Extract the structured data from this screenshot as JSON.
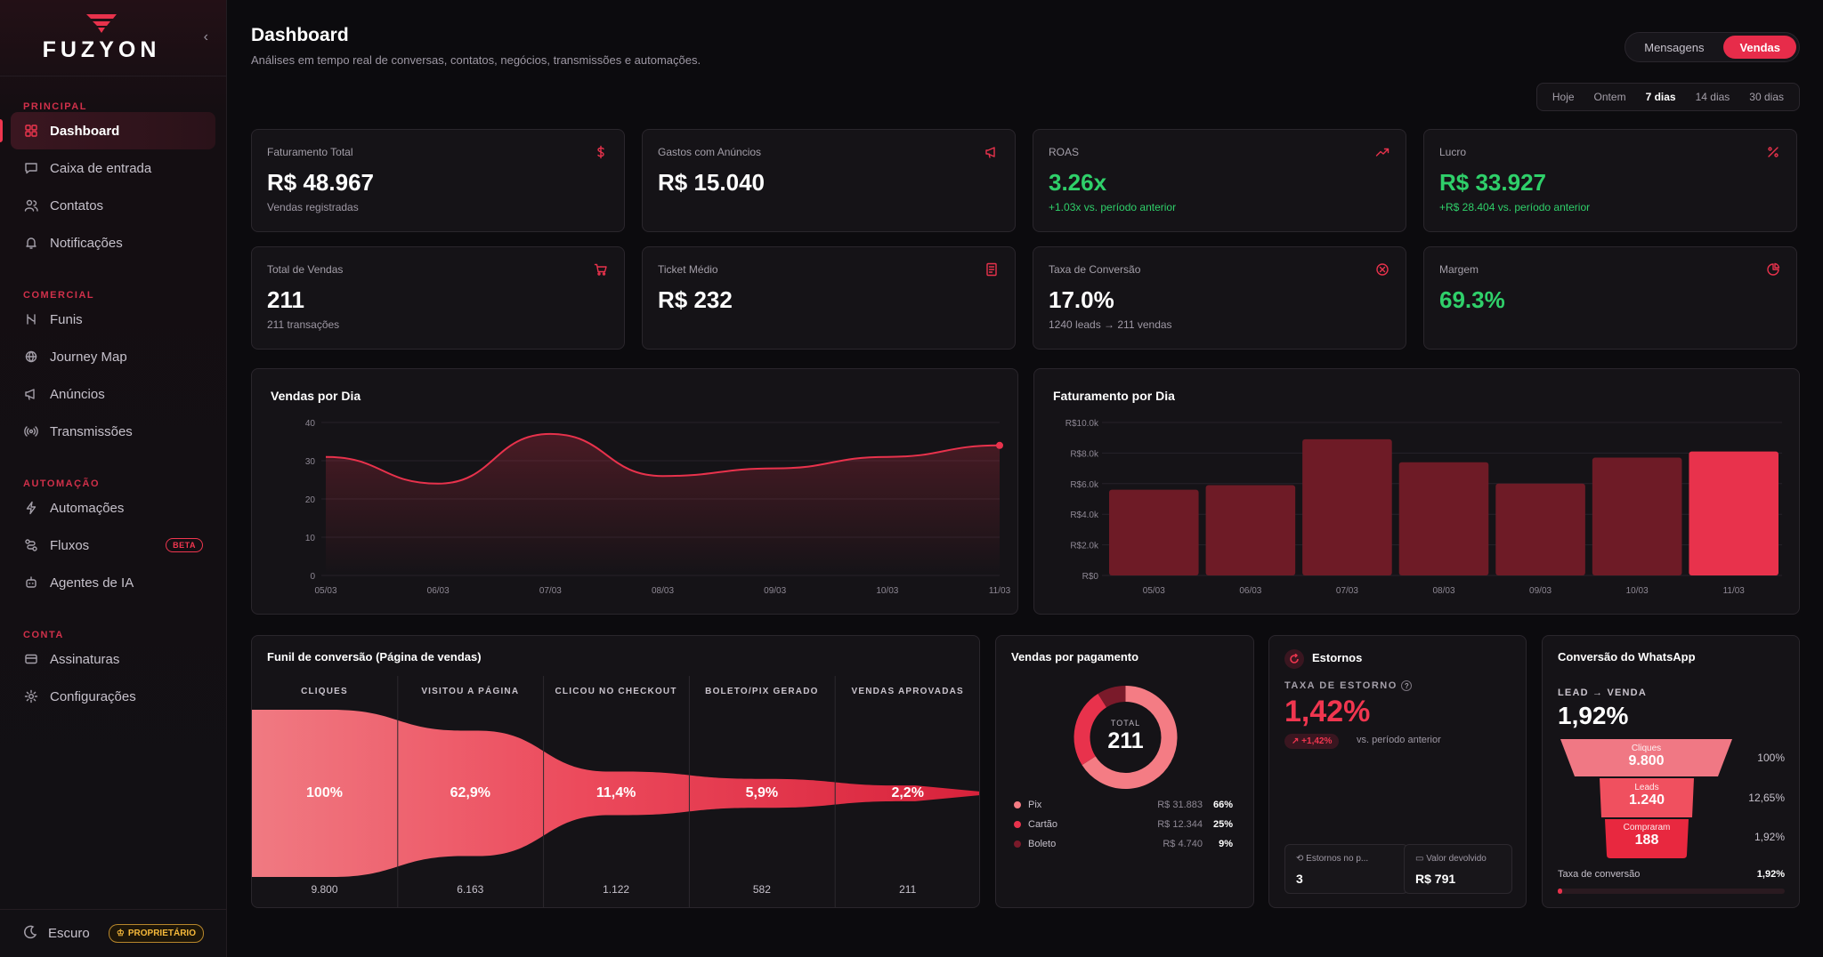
{
  "brand": {
    "name": "FUZYON"
  },
  "sidebar": {
    "sections": [
      {
        "title": "PRINCIPAL",
        "items": [
          {
            "label": "Dashboard",
            "icon": "grid-icon",
            "active": true
          },
          {
            "label": "Caixa de entrada",
            "icon": "inbox-icon"
          },
          {
            "label": "Contatos",
            "icon": "users-icon"
          },
          {
            "label": "Notificações",
            "icon": "bell-icon"
          }
        ]
      },
      {
        "title": "COMERCIAL",
        "items": [
          {
            "label": "Funis",
            "icon": "funnel-icon"
          },
          {
            "label": "Journey Map",
            "icon": "map-icon"
          },
          {
            "label": "Anúncios",
            "icon": "megaphone-icon"
          },
          {
            "label": "Transmissões",
            "icon": "broadcast-icon"
          }
        ]
      },
      {
        "title": "AUTOMAÇÃO",
        "items": [
          {
            "label": "Automações",
            "icon": "zap-icon"
          },
          {
            "label": "Fluxos",
            "icon": "flow-icon",
            "badge": "BETA"
          },
          {
            "label": "Agentes de IA",
            "icon": "bot-icon"
          }
        ]
      },
      {
        "title": "CONTA",
        "items": [
          {
            "label": "Assinaturas",
            "icon": "card-icon"
          },
          {
            "label": "Configurações",
            "icon": "gear-icon"
          }
        ]
      }
    ],
    "footer": {
      "theme_label": "Escuro",
      "role_badge": "PROPRIETÁRIO"
    }
  },
  "header": {
    "title": "Dashboard",
    "subtitle": "Análises em tempo real de conversas, contatos, negócios, transmissões e automações.",
    "view_toggle": [
      "Mensagens",
      "Vendas"
    ],
    "view_selected": "Vendas",
    "ranges": [
      "Hoje",
      "Ontem",
      "7 dias",
      "14 dias",
      "30 dias"
    ],
    "range_selected": "7 dias"
  },
  "kpis": [
    {
      "label": "Faturamento Total",
      "value": "R$ 48.967",
      "sub": "Vendas registradas",
      "icon": "dollar-icon",
      "tone": "default"
    },
    {
      "label": "Gastos com Anúncios",
      "value": "R$ 15.040",
      "sub": "",
      "icon": "megaphone-icon",
      "tone": "default"
    },
    {
      "label": "ROAS",
      "value": "3.26x",
      "sub": "+1.03x vs. período anterior",
      "icon": "trend-up-icon",
      "tone": "green"
    },
    {
      "label": "Lucro",
      "value": "R$ 33.927",
      "sub": "+R$ 28.404 vs. período anterior",
      "icon": "percent-icon",
      "tone": "green"
    },
    {
      "label": "Total de Vendas",
      "value": "211",
      "sub": "211 transações",
      "icon": "cart-icon",
      "tone": "default"
    },
    {
      "label": "Ticket Médio",
      "value": "R$ 232",
      "sub": "",
      "icon": "receipt-icon",
      "tone": "default"
    },
    {
      "label": "Taxa de Conversão",
      "value": "17.0%",
      "sub": "1240 leads → 211 vendas",
      "icon": "target-icon",
      "tone": "default"
    },
    {
      "label": "Margem",
      "value": "69.3%",
      "sub": "",
      "icon": "pie-icon",
      "tone": "green"
    }
  ],
  "chart_data": [
    {
      "type": "line",
      "title": "Vendas por Dia",
      "categories": [
        "05/03",
        "06/03",
        "07/03",
        "08/03",
        "09/03",
        "10/03",
        "11/03"
      ],
      "series": [
        {
          "values": [
            31,
            24,
            37,
            26,
            28,
            31,
            34
          ]
        }
      ],
      "yticks": [
        "40",
        "30",
        "20",
        "10",
        "0"
      ],
      "ylim": [
        0,
        40
      ],
      "grid": true
    },
    {
      "type": "bar",
      "title": "Faturamento por Dia",
      "categories": [
        "05/03",
        "06/03",
        "07/03",
        "08/03",
        "09/03",
        "10/03",
        "11/03"
      ],
      "values": [
        5600,
        5900,
        8900,
        7400,
        6000,
        7700,
        8100
      ],
      "yticks": [
        "R$10.0k",
        "R$8.0k",
        "R$6.0k",
        "R$4.0k",
        "R$2.0k",
        "R$0"
      ],
      "ylim": [
        0,
        10000
      ],
      "highlight_last": true
    }
  ],
  "funnel": {
    "title": "Funil de conversão (Página de vendas)",
    "stages": [
      {
        "head": "CLIQUES",
        "pct": "100%",
        "count": "9.800",
        "value": 1.0
      },
      {
        "head": "VISITOU A PÁGINA",
        "pct": "62,9%",
        "count": "6.163",
        "value": 0.629
      },
      {
        "head": "CLICOU NO CHECKOUT",
        "pct": "11,4%",
        "count": "1.122",
        "value": 0.114
      },
      {
        "head": "BOLETO/PIX GERADO",
        "pct": "5,9%",
        "count": "582",
        "value": 0.059
      },
      {
        "head": "VENDAS APROVADAS",
        "pct": "2,2%",
        "count": "211",
        "value": 0.022
      }
    ]
  },
  "payment": {
    "title": "Vendas por pagamento",
    "total_label": "TOTAL",
    "total_value": "211",
    "rows": [
      {
        "name": "Pix",
        "amount": "R$ 31.883",
        "pct": "66%",
        "share": 0.66,
        "color": "#f47c84"
      },
      {
        "name": "Cartão",
        "amount": "R$ 12.344",
        "pct": "25%",
        "share": 0.25,
        "color": "#e8324c"
      },
      {
        "name": "Boleto",
        "amount": "R$ 4.740",
        "pct": "9%",
        "share": 0.09,
        "color": "#7a1a2a"
      }
    ]
  },
  "refunds": {
    "title": "Estornos",
    "rate_label": "TAXA DE ESTORNO",
    "rate_value": "1,42%",
    "delta": "+1,42%",
    "vs": "vs. período anterior",
    "count_label": "Estornos no p...",
    "count_value": "3",
    "amount_label": "Valor devolvido",
    "amount_value": "R$ 791"
  },
  "whatsapp": {
    "title": "Conversão do WhatsApp",
    "kpi_label": "LEAD → VENDA",
    "kpi_value": "1,92%",
    "levels": [
      {
        "label": "Cliques",
        "value": "9.800",
        "pct": "100%"
      },
      {
        "label": "Leads",
        "value": "1.240",
        "pct": "12,65%"
      },
      {
        "label": "Compraram",
        "value": "188",
        "pct": "1,92%"
      }
    ],
    "footer_label": "Taxa de conversão",
    "footer_value": "1,92%",
    "footer_fill": 0.0192
  },
  "colors": {
    "accent": "#e8324c",
    "green": "#2fd06a",
    "bar": "#6e1b26",
    "bar_highlight": "#e8324c"
  }
}
